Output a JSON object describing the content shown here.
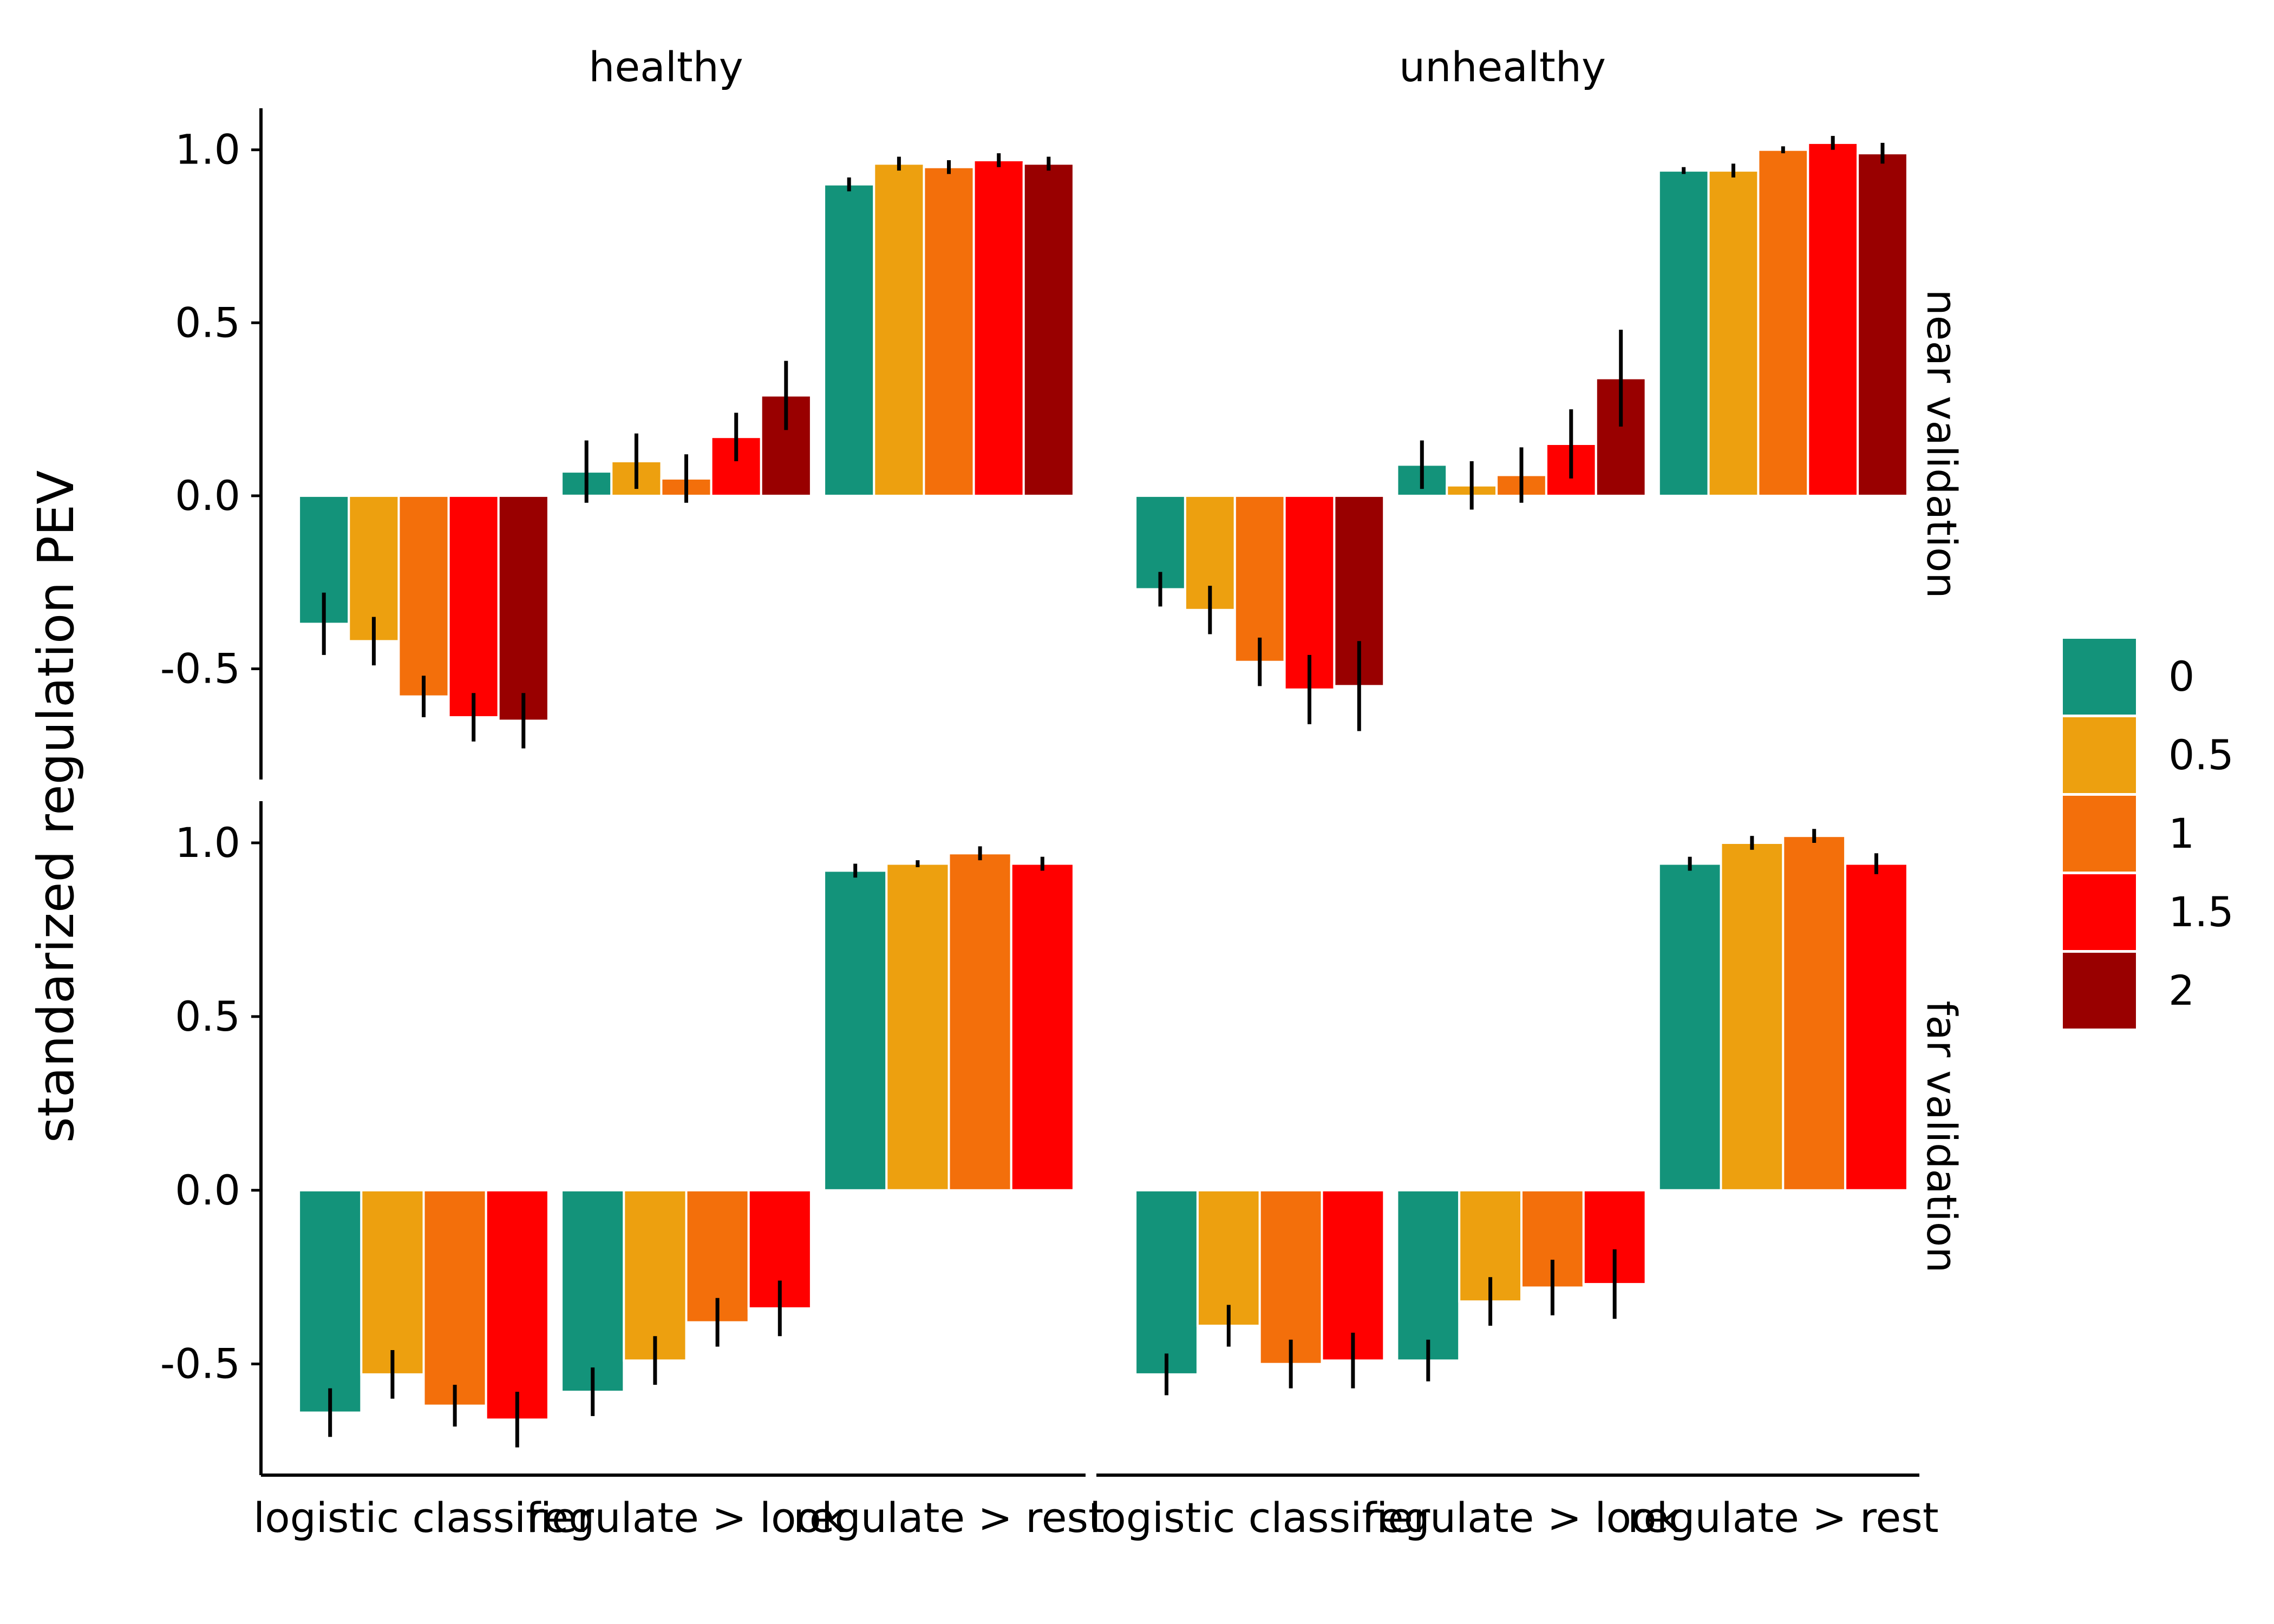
{
  "chart_data": {
    "type": "bar",
    "ylabel": "standarized regulation PEV",
    "facet_columns": [
      "healthy",
      "unhealthy"
    ],
    "facet_rows": [
      "near validation",
      "far validation"
    ],
    "categories": [
      "logistic classifier",
      "regulate > look",
      "regulate > rest"
    ],
    "yticks": [
      {
        "value": -0.5,
        "label": "-0.5"
      },
      {
        "value": 0,
        "label": "0.0"
      },
      {
        "value": 0.5,
        "label": "0.5"
      },
      {
        "value": 1,
        "label": "1.0"
      }
    ],
    "ylim_near": [
      -0.82,
      1.12
    ],
    "ylim_far": [
      -0.82,
      1.12
    ],
    "legend": {
      "placement": "right",
      "entries": [
        {
          "label": "0",
          "color": "#13937A"
        },
        {
          "label": "0.5",
          "color": "#EDA00F"
        },
        {
          "label": "1",
          "color": "#F36F0B"
        },
        {
          "label": "1.5",
          "color": "#FF0000"
        },
        {
          "label": "2",
          "color": "#990000"
        }
      ]
    },
    "panels": [
      {
        "column": "healthy",
        "row": "near validation",
        "series": [
          {
            "name": "0",
            "values": [
              -0.37,
              0.07,
              0.9
            ],
            "errors": [
              0.09,
              0.09,
              0.02
            ]
          },
          {
            "name": "0.5",
            "values": [
              -0.42,
              0.1,
              0.96
            ],
            "errors": [
              0.07,
              0.08,
              0.02
            ]
          },
          {
            "name": "1",
            "values": [
              -0.58,
              0.05,
              0.95
            ],
            "errors": [
              0.06,
              0.07,
              0.02
            ]
          },
          {
            "name": "1.5",
            "values": [
              -0.64,
              0.17,
              0.97
            ],
            "errors": [
              0.07,
              0.07,
              0.02
            ]
          },
          {
            "name": "2",
            "values": [
              -0.65,
              0.29,
              0.96
            ],
            "errors": [
              0.08,
              0.1,
              0.02
            ]
          }
        ]
      },
      {
        "column": "unhealthy",
        "row": "near validation",
        "series": [
          {
            "name": "0",
            "values": [
              -0.27,
              0.09,
              0.94
            ],
            "errors": [
              0.05,
              0.07,
              0.01
            ]
          },
          {
            "name": "0.5",
            "values": [
              -0.33,
              0.03,
              0.94
            ],
            "errors": [
              0.07,
              0.07,
              0.02
            ]
          },
          {
            "name": "1",
            "values": [
              -0.48,
              0.06,
              1.0
            ],
            "errors": [
              0.07,
              0.08,
              0.01
            ]
          },
          {
            "name": "1.5",
            "values": [
              -0.56,
              0.15,
              1.02
            ],
            "errors": [
              0.1,
              0.1,
              0.02
            ]
          },
          {
            "name": "2",
            "values": [
              -0.55,
              0.34,
              0.99
            ],
            "errors": [
              0.13,
              0.14,
              0.03
            ]
          }
        ]
      },
      {
        "column": "healthy",
        "row": "far validation",
        "series": [
          {
            "name": "0",
            "values": [
              -0.64,
              -0.58,
              0.92
            ],
            "errors": [
              0.07,
              0.07,
              0.02
            ]
          },
          {
            "name": "0.5",
            "values": [
              -0.53,
              -0.49,
              0.94
            ],
            "errors": [
              0.07,
              0.07,
              0.01
            ]
          },
          {
            "name": "1",
            "values": [
              -0.62,
              -0.38,
              0.97
            ],
            "errors": [
              0.06,
              0.07,
              0.02
            ]
          },
          {
            "name": "1.5",
            "values": [
              -0.66,
              -0.34,
              0.94
            ],
            "errors": [
              0.08,
              0.08,
              0.02
            ]
          }
        ]
      },
      {
        "column": "unhealthy",
        "row": "far validation",
        "series": [
          {
            "name": "0",
            "values": [
              -0.53,
              -0.49,
              0.94
            ],
            "errors": [
              0.06,
              0.06,
              0.02
            ]
          },
          {
            "name": "0.5",
            "values": [
              -0.39,
              -0.32,
              1.0
            ],
            "errors": [
              0.06,
              0.07,
              0.02
            ]
          },
          {
            "name": "1",
            "values": [
              -0.5,
              -0.28,
              1.02
            ],
            "errors": [
              0.07,
              0.08,
              0.02
            ]
          },
          {
            "name": "1.5",
            "values": [
              -0.49,
              -0.27,
              0.94
            ],
            "errors": [
              0.08,
              0.1,
              0.03
            ]
          }
        ]
      }
    ]
  }
}
